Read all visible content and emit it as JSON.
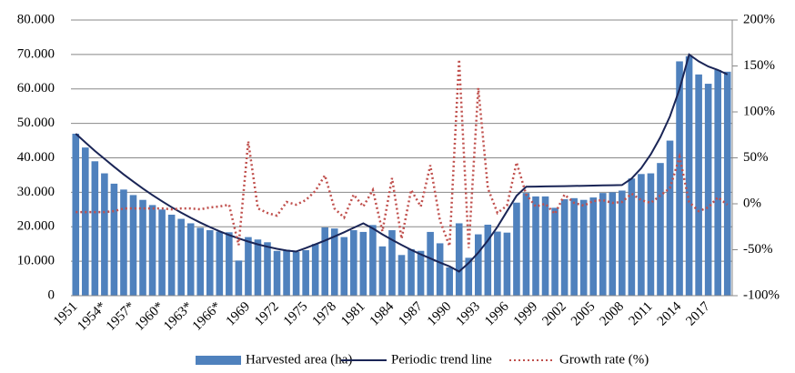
{
  "chart_data": {
    "type": "combo",
    "categories": [
      "1951",
      null,
      null,
      "1954*",
      null,
      null,
      "1957*",
      null,
      null,
      "1960*",
      null,
      null,
      "1963*",
      null,
      null,
      "1966*",
      null,
      null,
      "1969",
      null,
      null,
      "1972",
      null,
      null,
      "1975",
      null,
      null,
      "1978",
      null,
      null,
      "1981",
      null,
      null,
      "1984",
      null,
      null,
      "1987",
      null,
      null,
      "1990",
      null,
      null,
      "1993",
      null,
      null,
      "1996",
      null,
      null,
      "1999",
      null,
      null,
      "2002",
      null,
      null,
      "2005",
      null,
      null,
      "2008",
      null,
      null,
      "2011",
      null,
      null,
      "2014",
      null,
      null,
      "2017",
      null,
      null
    ],
    "series": [
      {
        "name": "Harvested area (ha)",
        "type": "bar",
        "color": "#4f81bd",
        "axis": "y",
        "values": [
          47000,
          43000,
          39000,
          35500,
          32500,
          30800,
          29200,
          27800,
          26300,
          25000,
          23500,
          22300,
          21000,
          19700,
          19000,
          18600,
          18400,
          10200,
          17000,
          16300,
          15500,
          13000,
          13300,
          12700,
          13200,
          15000,
          19800,
          19500,
          17000,
          19000,
          18500,
          20500,
          14300,
          19000,
          11800,
          13500,
          13000,
          18500,
          15200,
          8200,
          21000,
          11000,
          17800,
          20600,
          18600,
          18300,
          27000,
          29800,
          28800,
          28800,
          25500,
          28000,
          28300,
          27800,
          28500,
          29800,
          30000,
          30500,
          34000,
          35300,
          35500,
          38500,
          45000,
          68000,
          69500,
          64200,
          61500,
          65500,
          65000
        ]
      },
      {
        "name": "Periodic trend line",
        "type": "line",
        "style": "solid",
        "color": "#1a2556",
        "axis": "y",
        "values": [
          47000,
          44500,
          42000,
          39700,
          37400,
          35200,
          33100,
          31100,
          29200,
          27400,
          25700,
          24100,
          22600,
          21200,
          19900,
          18700,
          17600,
          16600,
          15700,
          14900,
          14200,
          13600,
          13100,
          12800,
          13800,
          14900,
          16000,
          17200,
          18400,
          19700,
          21000,
          19500,
          17800,
          16200,
          14700,
          13300,
          12000,
          10800,
          9600,
          8500,
          7000,
          9500,
          12500,
          16000,
          20000,
          24500,
          29000,
          31600,
          31650,
          31700,
          31750,
          31800,
          31850,
          31900,
          31950,
          32000,
          32050,
          32100,
          34000,
          37000,
          41000,
          46000,
          52000,
          60000,
          70000,
          68000,
          66500,
          65500,
          64200
        ]
      },
      {
        "name": "Growth rate (%)",
        "type": "line",
        "style": "dotted",
        "color": "#c0504d",
        "axis": "y2",
        "values": [
          -9,
          -9,
          -9,
          -9,
          -8,
          -5,
          -5,
          -5,
          -5,
          -5,
          -6,
          -5,
          -5,
          -6,
          -4,
          -3,
          -1,
          -45,
          68,
          -5,
          -10,
          -13,
          2,
          -1,
          4,
          14,
          31,
          -5,
          -15,
          10,
          -3,
          15,
          -30,
          28,
          -38,
          15,
          -3,
          42,
          -18,
          -46,
          157,
          -48,
          126,
          17,
          -10,
          -2,
          45,
          10,
          -3,
          0,
          -11,
          10,
          1,
          -2,
          3,
          4,
          1,
          2,
          11,
          4,
          1,
          9,
          17,
          51,
          2,
          -8,
          -4,
          7,
          -1
        ]
      }
    ],
    "ylim": [
      0,
      80000
    ],
    "yticks": [
      {
        "value": 0,
        "label": "0"
      },
      {
        "value": 10000,
        "label": "10.000"
      },
      {
        "value": 20000,
        "label": "20.000"
      },
      {
        "value": 30000,
        "label": "30.000"
      },
      {
        "value": 40000,
        "label": "40.000"
      },
      {
        "value": 50000,
        "label": "50.000"
      },
      {
        "value": 60000,
        "label": "60.000"
      },
      {
        "value": 70000,
        "label": "70.000"
      },
      {
        "value": 80000,
        "label": "80.000"
      }
    ],
    "y2lim": [
      -100,
      200
    ],
    "y2ticks": [
      {
        "value": -100,
        "label": "-100%"
      },
      {
        "value": -50,
        "label": "-50%"
      },
      {
        "value": 0,
        "label": "0%"
      },
      {
        "value": 50,
        "label": "50%"
      },
      {
        "value": 100,
        "label": "100%"
      },
      {
        "value": 150,
        "label": "150%"
      },
      {
        "value": 200,
        "label": "200%"
      }
    ],
    "grid": true,
    "legend": "bottom"
  }
}
